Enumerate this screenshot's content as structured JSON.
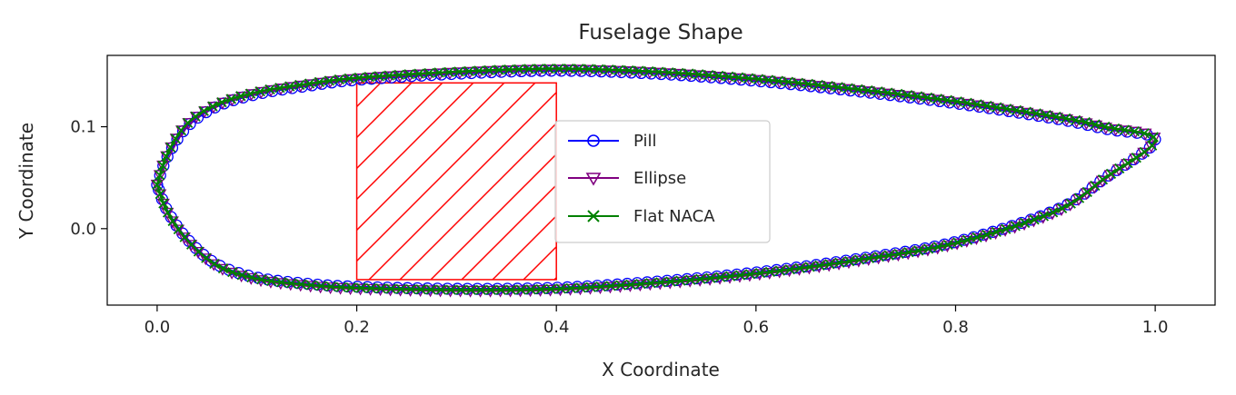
{
  "chart_data": {
    "type": "line",
    "title": "Fuselage Shape",
    "xlabel": "X Coordinate",
    "ylabel": "Y Coordinate",
    "xlim": [
      -0.05,
      1.06
    ],
    "ylim": [
      -0.075,
      0.17
    ],
    "xticks": [
      0.0,
      0.2,
      0.4,
      0.6,
      0.8,
      1.0
    ],
    "xtick_labels": [
      "0.0",
      "0.2",
      "0.4",
      "0.6",
      "0.8",
      "1.0"
    ],
    "yticks": [
      0.0,
      0.1
    ],
    "ytick_labels": [
      "0.0",
      "0.1"
    ],
    "grid": false,
    "legend_position": "center",
    "series": [
      {
        "name": "Pill",
        "color": "#0000ff",
        "marker": "circle",
        "upper": [
          [
            0.0,
            0.043
          ],
          [
            0.01,
            0.07
          ],
          [
            0.03,
            0.1
          ],
          [
            0.06,
            0.12
          ],
          [
            0.1,
            0.132
          ],
          [
            0.15,
            0.14
          ],
          [
            0.2,
            0.146
          ],
          [
            0.3,
            0.152
          ],
          [
            0.4,
            0.155
          ],
          [
            0.5,
            0.152
          ],
          [
            0.6,
            0.145
          ],
          [
            0.7,
            0.135
          ],
          [
            0.8,
            0.123
          ],
          [
            0.9,
            0.108
          ],
          [
            0.95,
            0.098
          ],
          [
            1.0,
            0.087
          ]
        ],
        "lower": [
          [
            0.0,
            0.043
          ],
          [
            0.01,
            0.018
          ],
          [
            0.03,
            -0.01
          ],
          [
            0.06,
            -0.035
          ],
          [
            0.1,
            -0.048
          ],
          [
            0.15,
            -0.054
          ],
          [
            0.2,
            -0.057
          ],
          [
            0.3,
            -0.059
          ],
          [
            0.4,
            -0.058
          ],
          [
            0.5,
            -0.052
          ],
          [
            0.6,
            -0.043
          ],
          [
            0.7,
            -0.03
          ],
          [
            0.8,
            -0.013
          ],
          [
            0.9,
            0.018
          ],
          [
            0.95,
            0.05
          ],
          [
            1.0,
            0.087
          ]
        ]
      },
      {
        "name": "Ellipse",
        "color": "#800080",
        "marker": "triangle-down",
        "upper": [
          [
            0.0,
            0.043
          ],
          [
            0.01,
            0.072
          ],
          [
            0.03,
            0.102
          ],
          [
            0.06,
            0.121
          ],
          [
            0.1,
            0.133
          ],
          [
            0.15,
            0.141
          ],
          [
            0.2,
            0.147
          ],
          [
            0.3,
            0.153
          ],
          [
            0.4,
            0.156
          ],
          [
            0.5,
            0.153
          ],
          [
            0.6,
            0.146
          ],
          [
            0.7,
            0.136
          ],
          [
            0.8,
            0.124
          ],
          [
            0.9,
            0.109
          ],
          [
            0.95,
            0.099
          ],
          [
            1.0,
            0.087
          ]
        ],
        "lower": [
          [
            0.0,
            0.043
          ],
          [
            0.01,
            0.016
          ],
          [
            0.03,
            -0.012
          ],
          [
            0.06,
            -0.037
          ],
          [
            0.1,
            -0.05
          ],
          [
            0.15,
            -0.056
          ],
          [
            0.2,
            -0.059
          ],
          [
            0.3,
            -0.061
          ],
          [
            0.4,
            -0.06
          ],
          [
            0.5,
            -0.054
          ],
          [
            0.6,
            -0.045
          ],
          [
            0.7,
            -0.032
          ],
          [
            0.8,
            -0.015
          ],
          [
            0.9,
            0.016
          ],
          [
            0.95,
            0.049
          ],
          [
            1.0,
            0.087
          ]
        ]
      },
      {
        "name": "Flat NACA",
        "color": "#008000",
        "marker": "x",
        "upper": [
          [
            0.0,
            0.043
          ],
          [
            0.01,
            0.073
          ],
          [
            0.03,
            0.103
          ],
          [
            0.06,
            0.122
          ],
          [
            0.1,
            0.134
          ],
          [
            0.15,
            0.142
          ],
          [
            0.2,
            0.148
          ],
          [
            0.3,
            0.154
          ],
          [
            0.4,
            0.157
          ],
          [
            0.5,
            0.154
          ],
          [
            0.6,
            0.147
          ],
          [
            0.7,
            0.137
          ],
          [
            0.8,
            0.125
          ],
          [
            0.9,
            0.11
          ],
          [
            0.95,
            0.1
          ],
          [
            1.0,
            0.087
          ]
        ],
        "lower": [
          [
            0.0,
            0.043
          ],
          [
            0.01,
            0.017
          ],
          [
            0.03,
            -0.011
          ],
          [
            0.06,
            -0.036
          ],
          [
            0.1,
            -0.049
          ],
          [
            0.15,
            -0.055
          ],
          [
            0.2,
            -0.058
          ],
          [
            0.3,
            -0.06
          ],
          [
            0.4,
            -0.059
          ],
          [
            0.5,
            -0.053
          ],
          [
            0.6,
            -0.044
          ],
          [
            0.7,
            -0.031
          ],
          [
            0.8,
            -0.014
          ],
          [
            0.9,
            0.017
          ],
          [
            0.95,
            0.05
          ],
          [
            1.0,
            0.087
          ]
        ]
      }
    ],
    "annotations": [
      {
        "type": "hatched-rectangle",
        "x": [
          0.2,
          0.4
        ],
        "y": [
          -0.05,
          0.143
        ],
        "color": "#ff0000"
      }
    ]
  }
}
